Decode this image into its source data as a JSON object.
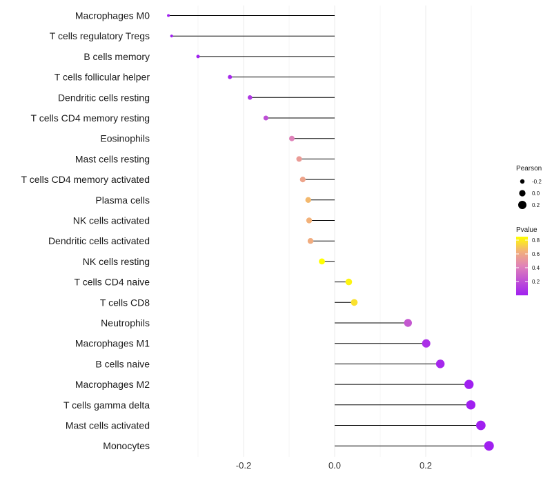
{
  "chart_data": {
    "type": "lollipop",
    "title": "",
    "xlabel": "",
    "ylabel": "",
    "xlim": [
      -0.37,
      0.35
    ],
    "xticks": [
      -0.2,
      0.0,
      0.2
    ],
    "xtick_labels": [
      "-0.2",
      "0.0",
      "0.2"
    ],
    "grid": true,
    "categories": [
      "Macrophages M0",
      "T cells regulatory  Tregs",
      "B cells memory",
      "T cells follicular helper",
      "Dendritic cells resting",
      "T cells CD4 memory resting",
      "Eosinophils",
      "Mast cells resting",
      "T cells CD4 memory activated",
      "Plasma cells",
      "NK cells activated",
      "Dendritic cells activated",
      "NK cells resting",
      "T cells CD4 naive",
      "T cells CD8",
      "Neutrophils",
      "Macrophages M1",
      "B cells naive",
      "Macrophages M2",
      "T cells gamma delta",
      "Mast cells activated",
      "Monocytes"
    ],
    "pearson": [
      -0.365,
      -0.358,
      -0.3,
      -0.23,
      -0.186,
      -0.151,
      -0.094,
      -0.078,
      -0.07,
      -0.058,
      -0.056,
      -0.053,
      -0.028,
      0.031,
      0.043,
      0.161,
      0.201,
      0.232,
      0.295,
      0.299,
      0.321,
      0.339
    ],
    "pvalue": [
      0.0,
      0.0,
      0.0,
      0.04,
      0.1,
      0.2,
      0.42,
      0.54,
      0.58,
      0.66,
      0.64,
      0.62,
      0.85,
      0.82,
      0.77,
      0.24,
      0.07,
      0.03,
      0.0,
      0.0,
      0.0,
      0.0
    ],
    "legend": {
      "placement": "right",
      "size_title": "Pearson",
      "size_values": [
        -0.2,
        0.0,
        0.2
      ],
      "size_labels": [
        "-0.2",
        "0.0",
        "0.2"
      ],
      "color_title": "Pvalue",
      "color_ticks": [
        0.2,
        0.4,
        0.6,
        0.8
      ],
      "color_tick_labels": [
        "0.2",
        "0.4",
        "0.6",
        "0.8"
      ],
      "color_low": "#a020f0",
      "color_mid": "#f2a98a",
      "color_high": "#ffff00",
      "color_range": [
        0.0,
        0.85
      ]
    }
  }
}
